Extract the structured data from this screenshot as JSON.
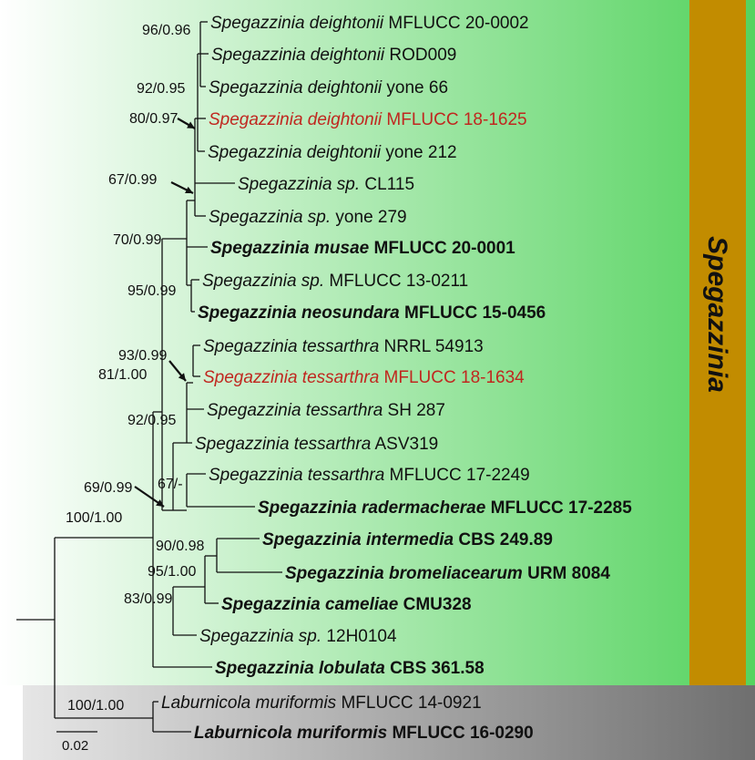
{
  "clade_label": "Spegazzinia",
  "colors": {
    "ingroup_gradient_left": "#ffffff",
    "ingroup_gradient_right": "#55d35f",
    "outgroup_gradient_left": "#e6e6e6",
    "outgroup_gradient_right": "#6f6f6f",
    "clade_bar": "#c28c00",
    "highlight_text": "#c0271f"
  },
  "taxa": [
    {
      "genus": "Spegazzinia",
      "epithet": "deightonii",
      "strain": "MFLUCC 20-0002",
      "bold": false,
      "highlight": false
    },
    {
      "genus": "Spegazzinia",
      "epithet": "deightonii",
      "strain": "ROD009",
      "bold": false,
      "highlight": false
    },
    {
      "genus": "Spegazzinia",
      "epithet": "deightonii",
      "strain": "yone 66",
      "bold": false,
      "highlight": false
    },
    {
      "genus": "Spegazzinia",
      "epithet": "deightonii",
      "strain": "MFLUCC 18-1625",
      "bold": false,
      "highlight": true
    },
    {
      "genus": "Spegazzinia",
      "epithet": "deightonii",
      "strain": "yone 212",
      "bold": false,
      "highlight": false
    },
    {
      "genus": "Spegazzinia",
      "epithet": "sp.",
      "strain": "CL115",
      "bold": false,
      "highlight": false
    },
    {
      "genus": "Spegazzinia",
      "epithet": "sp.",
      "strain": "yone 279",
      "bold": false,
      "highlight": false
    },
    {
      "genus": "Spegazzinia",
      "epithet": "musae",
      "strain": "MFLUCC 20-0001",
      "bold": true,
      "highlight": false
    },
    {
      "genus": "Spegazzinia",
      "epithet": "sp.",
      "strain": "MFLUCC 13-0211",
      "bold": false,
      "highlight": false
    },
    {
      "genus": "Spegazzinia",
      "epithet": "neosundara",
      "strain": "MFLUCC 15-0456",
      "bold": true,
      "highlight": false
    },
    {
      "genus": "Spegazzinia",
      "epithet": "tessarthra",
      "strain": "NRRL 54913",
      "bold": false,
      "highlight": false
    },
    {
      "genus": "Spegazzinia",
      "epithet": "tessarthra",
      "strain": "MFLUCC 18-1634",
      "bold": false,
      "highlight": true
    },
    {
      "genus": "Spegazzinia",
      "epithet": "tessarthra",
      "strain": "SH 287",
      "bold": false,
      "highlight": false
    },
    {
      "genus": "Spegazzinia",
      "epithet": "tessarthra",
      "strain": "ASV319",
      "bold": false,
      "highlight": false
    },
    {
      "genus": "Spegazzinia",
      "epithet": "tessarthra",
      "strain": "MFLUCC 17-2249",
      "bold": false,
      "highlight": false
    },
    {
      "genus": "Spegazzinia",
      "epithet": "radermacherae",
      "strain": "MFLUCC 17-2285",
      "bold": true,
      "highlight": false
    },
    {
      "genus": "Spegazzinia",
      "epithet": "intermedia",
      "strain": "CBS 249.89",
      "bold": true,
      "highlight": false
    },
    {
      "genus": "Spegazzinia",
      "epithet": "bromeliacearum",
      "strain": "URM 8084",
      "bold": true,
      "highlight": false
    },
    {
      "genus": "Spegazzinia",
      "epithet": "cameliae",
      "strain": "CMU328",
      "bold": true,
      "highlight": false
    },
    {
      "genus": "Spegazzinia",
      "epithet": "sp.",
      "strain": "12H0104",
      "bold": false,
      "highlight": false
    },
    {
      "genus": "Spegazzinia",
      "epithet": "lobulata",
      "strain": "CBS 361.58",
      "bold": true,
      "highlight": false
    },
    {
      "genus": "Laburnicola",
      "epithet": "muriformis",
      "strain": "MFLUCC 14-0921",
      "bold": false,
      "highlight": false
    },
    {
      "genus": "Laburnicola",
      "epithet": "muriformis",
      "strain": "MFLUCC 16-0290",
      "bold": true,
      "highlight": false
    }
  ],
  "supports": [
    "96/0.96",
    "92/0.95",
    "80/0.97",
    "67/0.99",
    "70/0.99",
    "95/0.99",
    "93/0.99",
    "81/1.00",
    "92/0.95",
    "67/-",
    "69/0.99",
    "100/1.00",
    "90/0.98",
    "95/1.00",
    "83/0.99",
    "100/1.00"
  ],
  "scale_bar": {
    "label": "0.02"
  }
}
